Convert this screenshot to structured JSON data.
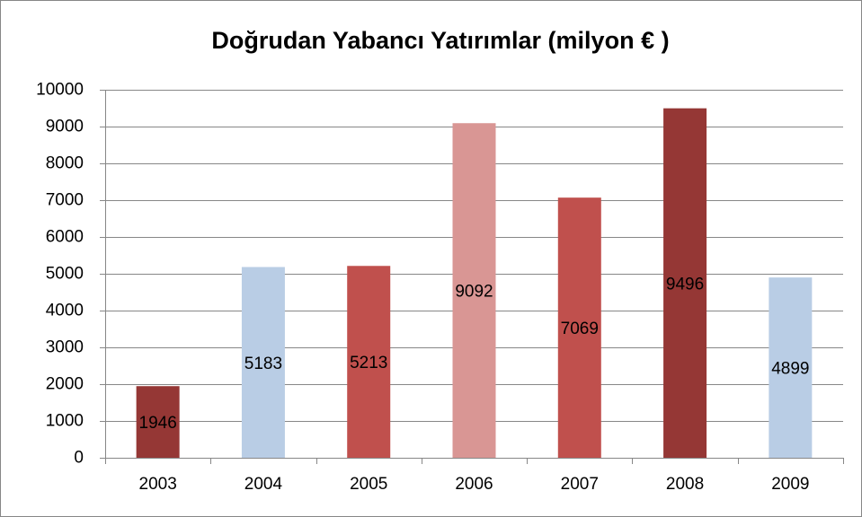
{
  "chart_data": {
    "type": "bar",
    "title": "Doğrudan Yabancı Yatırımlar (milyon € )",
    "categories": [
      "2003",
      "2004",
      "2005",
      "2006",
      "2007",
      "2008",
      "2009"
    ],
    "values": [
      1946,
      5183,
      5213,
      9092,
      7069,
      9496,
      4899
    ],
    "colors": [
      "#953735",
      "#b9cde5",
      "#c0504d",
      "#d99694",
      "#c0504d",
      "#953735",
      "#b9cde5"
    ],
    "ylim": [
      0,
      10000
    ],
    "yticks": [
      0,
      1000,
      2000,
      3000,
      4000,
      5000,
      6000,
      7000,
      8000,
      9000,
      10000
    ],
    "grid": true,
    "data_labels": true
  }
}
